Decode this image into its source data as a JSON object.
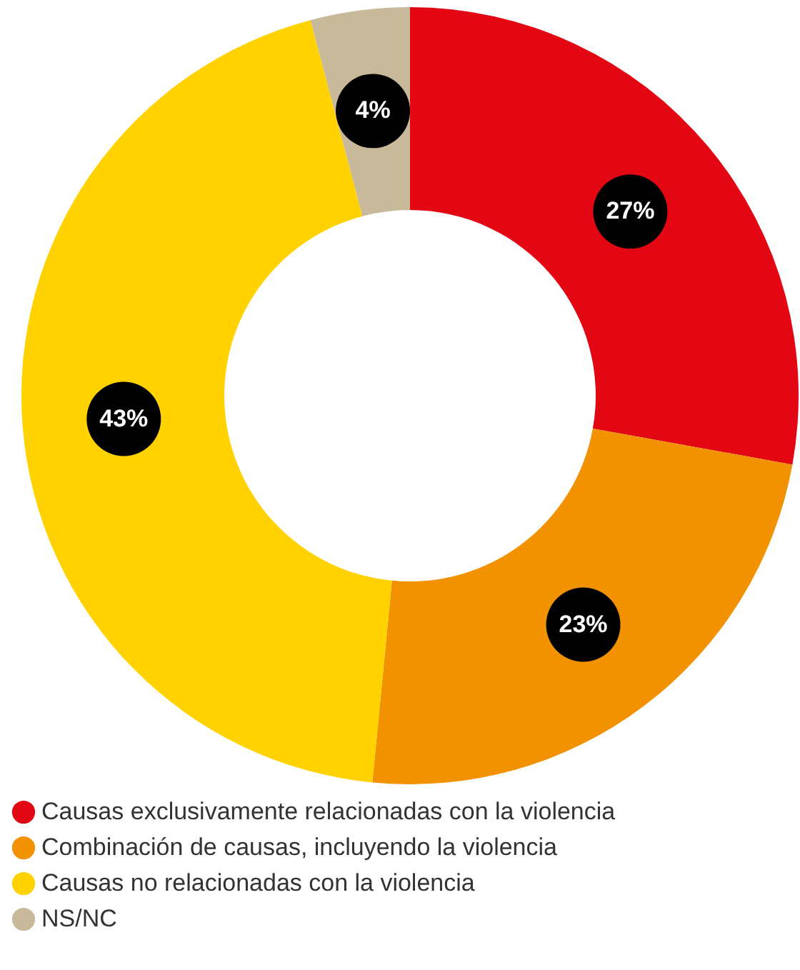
{
  "chart_data": {
    "type": "donut",
    "categories": [
      "Causas exclusivamente relacionadas con la violencia",
      "Combinación de causas, incluyendo la violencia",
      "Causas no relacionadas con la violencia",
      "NS/NC"
    ],
    "values": [
      27,
      23,
      43,
      4
    ],
    "colors": [
      "#e30613",
      "#f39200",
      "#ffd200",
      "#c9b99b"
    ],
    "value_labels": [
      "27%",
      "23%",
      "43%",
      "4%"
    ],
    "legend": "bottom left"
  }
}
